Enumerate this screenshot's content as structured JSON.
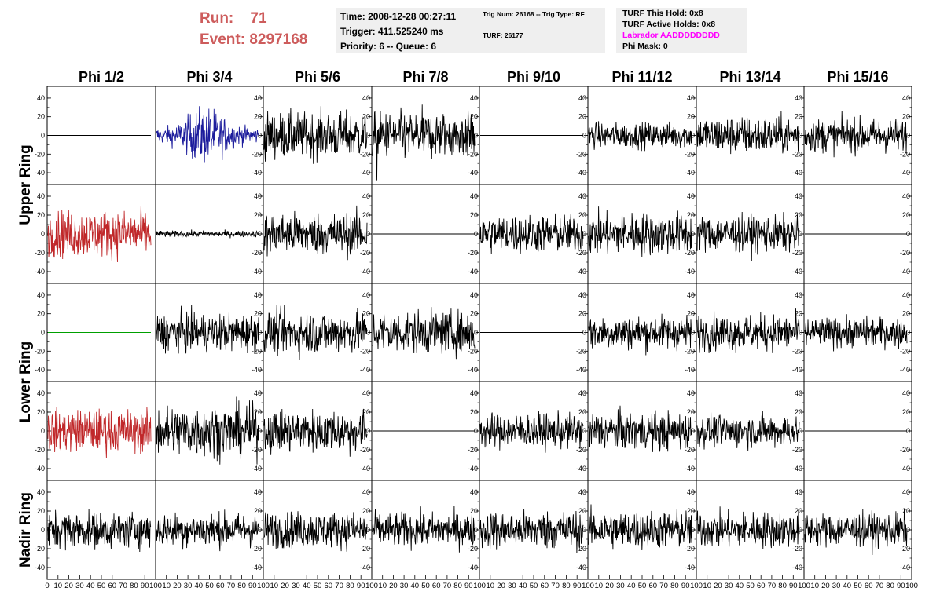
{
  "header": {
    "run_label": "Run:",
    "run_value": "71",
    "event_label": "Event:",
    "event_value": "8297168",
    "time": "Time: 2008-12-28 00:27:11",
    "trigger": "Trigger: 411.525240 ms",
    "priority": "Priority: 6 -- Queue: 6",
    "trig_num": "Trig Num: 26168 -- Trig Type: RF",
    "turf": "TURF: 26177",
    "turf_hold": "TURF This Hold: 0x8",
    "turf_active": "TURF Active Holds: 0x8",
    "labrador": "Labrador AADDDDDDDD",
    "phi_mask": "Phi Mask: 0"
  },
  "columns": [
    "Phi 1/2",
    "Phi 3/4",
    "Phi 5/6",
    "Phi 7/8",
    "Phi 9/10",
    "Phi 11/12",
    "Phi 13/14",
    "Phi 15/16"
  ],
  "rows": [
    "Upper Ring",
    "Upper Ring",
    "Lower Ring",
    "Lower Ring",
    "Nadir Ring"
  ],
  "row_labels": [
    "Upper Ring",
    "Lower Ring",
    "Nadir Ring"
  ],
  "colors": {
    "accent_red": "#cd5c5c",
    "labrador_magenta": "#ff00ff",
    "trace_black": "#000000",
    "trace_red": "#c0282a",
    "trace_blue": "#1c1c9c",
    "trace_green": "#00a000"
  },
  "chart_data": {
    "type": "line",
    "panels": "5 rows x 8 columns of waveform traces",
    "xlim": [
      0,
      100
    ],
    "ylim": [
      -50,
      50
    ],
    "x_ticks": [
      "0",
      "10",
      "20",
      "30",
      "40",
      "50",
      "60",
      "70",
      "80",
      "90",
      "100"
    ],
    "y_ticks": [
      "40",
      "20",
      "0",
      "-20",
      "-40"
    ],
    "traces": [
      [
        {
          "kind": "flat"
        },
        {
          "kind": "noise",
          "amp": 22,
          "color": "blue",
          "envelope": "burst"
        },
        {
          "kind": "noise",
          "amp": 22
        },
        {
          "kind": "noise",
          "amp": 22,
          "spikes": true
        },
        {
          "kind": "flat"
        },
        {
          "kind": "noise",
          "amp": 12
        },
        {
          "kind": "noise",
          "amp": 18
        },
        {
          "kind": "noise",
          "amp": 16
        }
      ],
      [
        {
          "kind": "noise",
          "amp": 22,
          "color": "red"
        },
        {
          "kind": "noise",
          "amp": 3
        },
        {
          "kind": "noise",
          "amp": 20
        },
        {
          "kind": "flat"
        },
        {
          "kind": "noise",
          "amp": 18
        },
        {
          "kind": "noise",
          "amp": 20
        },
        {
          "kind": "noise",
          "amp": 17
        },
        {
          "kind": "flat"
        }
      ],
      [
        {
          "kind": "flat",
          "color": "green"
        },
        {
          "kind": "noise",
          "amp": 18
        },
        {
          "kind": "noise",
          "amp": 20
        },
        {
          "kind": "noise",
          "amp": 20
        },
        {
          "kind": "flat"
        },
        {
          "kind": "noise",
          "amp": 16
        },
        {
          "kind": "noise",
          "amp": 17
        },
        {
          "kind": "noise",
          "amp": 14
        }
      ],
      [
        {
          "kind": "noise",
          "amp": 20,
          "color": "red"
        },
        {
          "kind": "noise",
          "amp": 24
        },
        {
          "kind": "noise",
          "amp": 20
        },
        {
          "kind": "flat"
        },
        {
          "kind": "noise",
          "amp": 16
        },
        {
          "kind": "noise",
          "amp": 18
        },
        {
          "kind": "noise",
          "amp": 15
        },
        {
          "kind": "flat"
        }
      ],
      [
        {
          "kind": "noise",
          "amp": 17
        },
        {
          "kind": "noise",
          "amp": 16
        },
        {
          "kind": "noise",
          "amp": 17
        },
        {
          "kind": "noise",
          "amp": 16
        },
        {
          "kind": "noise",
          "amp": 18
        },
        {
          "kind": "noise",
          "amp": 18
        },
        {
          "kind": "noise",
          "amp": 17
        },
        {
          "kind": "noise",
          "amp": 16
        }
      ]
    ]
  }
}
